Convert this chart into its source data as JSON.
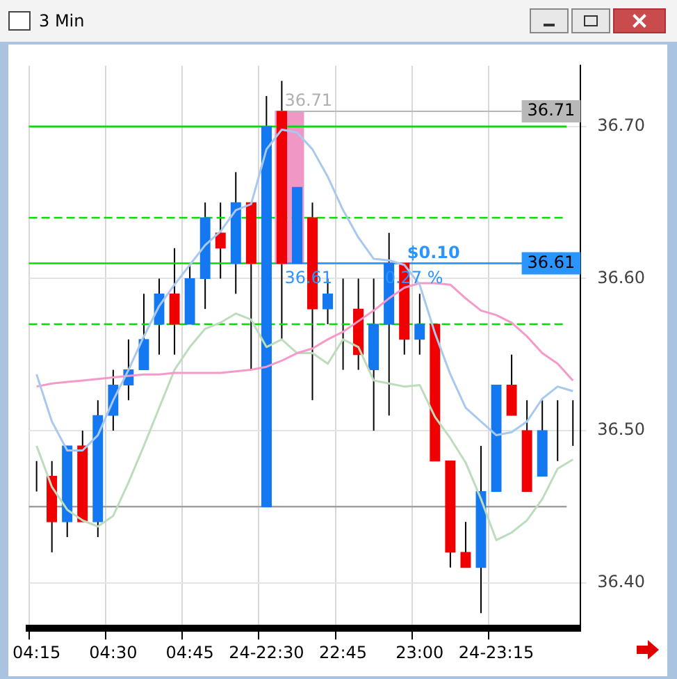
{
  "chart_data": {
    "type": "candlestick",
    "title": "3 Min",
    "categories": [
      "04:15",
      null,
      null,
      null,
      null,
      "04:30",
      null,
      null,
      null,
      null,
      "04:45",
      null,
      null,
      null,
      null,
      "24-22:30",
      null,
      null,
      null,
      null,
      "22:45",
      null,
      null,
      null,
      null,
      "23:00",
      null,
      null,
      null,
      null,
      "24-23:15",
      null,
      null,
      null,
      null,
      null
    ],
    "ohlc": [
      [
        36.47,
        36.48,
        36.46,
        36.47
      ],
      [
        36.47,
        36.48,
        36.42,
        36.44
      ],
      [
        36.44,
        36.49,
        36.43,
        36.49
      ],
      [
        36.49,
        36.5,
        36.44,
        36.44
      ],
      [
        36.44,
        36.52,
        36.43,
        36.51
      ],
      [
        36.51,
        36.54,
        36.5,
        36.53
      ],
      [
        36.53,
        36.56,
        36.52,
        36.54
      ],
      [
        36.54,
        36.59,
        36.54,
        36.56
      ],
      [
        36.57,
        36.6,
        36.55,
        36.59
      ],
      [
        36.59,
        36.62,
        36.55,
        36.57
      ],
      [
        36.57,
        36.61,
        36.57,
        36.6
      ],
      [
        36.6,
        36.65,
        36.58,
        36.64
      ],
      [
        36.63,
        36.65,
        36.6,
        36.62
      ],
      [
        36.61,
        36.67,
        36.59,
        36.65
      ],
      [
        36.65,
        36.65,
        36.54,
        36.61
      ],
      [
        36.45,
        36.72,
        36.45,
        36.7
      ],
      [
        36.71,
        36.73,
        36.56,
        36.61
      ],
      [
        36.61,
        36.66,
        36.61,
        36.66
      ],
      [
        36.64,
        36.65,
        36.52,
        36.58
      ],
      [
        36.58,
        36.6,
        36.57,
        36.59
      ],
      [
        36.59,
        36.6,
        36.54,
        36.59
      ],
      [
        36.58,
        36.6,
        36.54,
        36.55
      ],
      [
        36.54,
        36.6,
        36.5,
        36.57
      ],
      [
        36.57,
        36.63,
        36.51,
        36.61
      ],
      [
        36.61,
        36.61,
        36.55,
        36.56
      ],
      [
        36.56,
        36.59,
        36.55,
        36.57
      ],
      [
        36.57,
        36.57,
        36.48,
        36.48
      ],
      [
        36.48,
        36.48,
        36.41,
        36.42
      ],
      [
        36.42,
        36.44,
        36.41,
        36.41
      ],
      [
        36.41,
        36.49,
        36.38,
        36.46
      ],
      [
        36.46,
        36.53,
        36.46,
        36.53
      ],
      [
        36.53,
        36.55,
        36.51,
        36.51
      ],
      [
        36.5,
        36.52,
        36.46,
        36.46
      ],
      [
        36.47,
        36.52,
        36.47,
        36.5
      ],
      [
        36.5,
        36.52,
        36.48,
        36.5
      ],
      [
        36.5,
        36.52,
        36.49,
        36.5
      ]
    ],
    "colors": [
      "#1478f0",
      "#f00000",
      "#1478f0",
      "#f00000",
      "#1478f0",
      "#1478f0",
      "#1478f0",
      "#1478f0",
      "#1478f0",
      "#f00000",
      "#1478f0",
      "#1478f0",
      "#f00000",
      "#1478f0",
      "#f00000",
      "#1478f0",
      "#f00000",
      "#1478f0",
      "#f00000",
      "#1478f0",
      "#1478f0",
      "#f00000",
      "#1478f0",
      "#1478f0",
      "#f00000",
      "#1478f0",
      "#f00000",
      "#f00000",
      "#f00000",
      "#1478f0",
      "#1478f0",
      "#f00000",
      "#f00000",
      "#1478f0",
      "#1478f0",
      "#1478f0"
    ],
    "series": [
      {
        "type": "line",
        "color": "#a8c8f0",
        "values": [
          36.537,
          36.506,
          36.487,
          36.487,
          36.497,
          36.52,
          36.54,
          36.562,
          36.582,
          36.596,
          36.609,
          36.622,
          36.631,
          36.645,
          36.649,
          36.685,
          36.698,
          36.696,
          36.685,
          36.667,
          36.645,
          36.627,
          36.613,
          36.612,
          36.609,
          36.596,
          36.564,
          36.537,
          36.515,
          36.506,
          36.497,
          36.499,
          36.506,
          36.521,
          36.529,
          36.526
        ]
      },
      {
        "type": "line",
        "color": "#f59ac8",
        "values": [
          36.529,
          36.531,
          36.532,
          36.533,
          36.534,
          36.535,
          36.536,
          36.537,
          36.537,
          36.538,
          36.538,
          36.538,
          36.538,
          36.539,
          36.54,
          36.542,
          36.546,
          36.551,
          36.554,
          36.56,
          36.565,
          36.572,
          36.579,
          36.587,
          36.594,
          36.597,
          36.597,
          36.596,
          36.587,
          36.579,
          36.576,
          36.571,
          36.562,
          36.551,
          36.544,
          36.533
        ]
      },
      {
        "type": "line",
        "color": "#bcdcbc",
        "values": [
          36.49,
          36.463,
          36.448,
          36.441,
          36.437,
          36.444,
          36.466,
          36.49,
          36.515,
          36.54,
          36.555,
          36.567,
          36.571,
          36.577,
          36.573,
          36.555,
          36.56,
          36.551,
          36.551,
          36.544,
          36.56,
          36.555,
          36.533,
          36.531,
          36.529,
          36.53,
          36.509,
          36.495,
          36.479,
          36.455,
          36.428,
          36.433,
          36.441,
          36.455,
          36.475,
          36.481
        ]
      }
    ],
    "ylim": [
      36.37,
      36.74
    ],
    "yticks": [
      {
        "value": 36.4,
        "label": "36.40"
      },
      {
        "value": 36.5,
        "label": "36.50"
      },
      {
        "value": 36.6,
        "label": "36.60"
      },
      {
        "value": 36.7,
        "label": "36.70"
      }
    ],
    "grid": true,
    "ref_lines": [
      {
        "axis": "y",
        "value": 36.7,
        "color": "#00dd00",
        "line_style": "solid"
      },
      {
        "axis": "y",
        "value": 36.61,
        "color": "#00dd00",
        "line_style": "solid"
      },
      {
        "axis": "y",
        "value": 36.64,
        "color": "#00dd00",
        "line_style": "dashed"
      },
      {
        "axis": "y",
        "value": 36.57,
        "color": "#00dd00",
        "line_style": "dashed"
      },
      {
        "axis": "y",
        "value": 36.45,
        "color": "#a0a0a0",
        "line_style": "solid"
      },
      {
        "axis": "y",
        "value": 36.71,
        "label": "36.71",
        "color": "#b8b8b8",
        "line_style": "solid"
      },
      {
        "axis": "y",
        "value": 36.61,
        "label": "36.61",
        "color": "#2a95ff",
        "line_style": "solid"
      }
    ],
    "bands": [
      {
        "axis": "y",
        "from": 36.61,
        "to": 36.71,
        "color": "#f08cc0"
      }
    ],
    "annotations": [
      {
        "text": "36.71",
        "y": 36.71
      },
      {
        "text": "36.61",
        "y": 36.61
      },
      {
        "text": "$0.10",
        "y": 36.61
      },
      {
        "text": "0.27 %",
        "y": 36.61
      }
    ],
    "legend": false
  }
}
